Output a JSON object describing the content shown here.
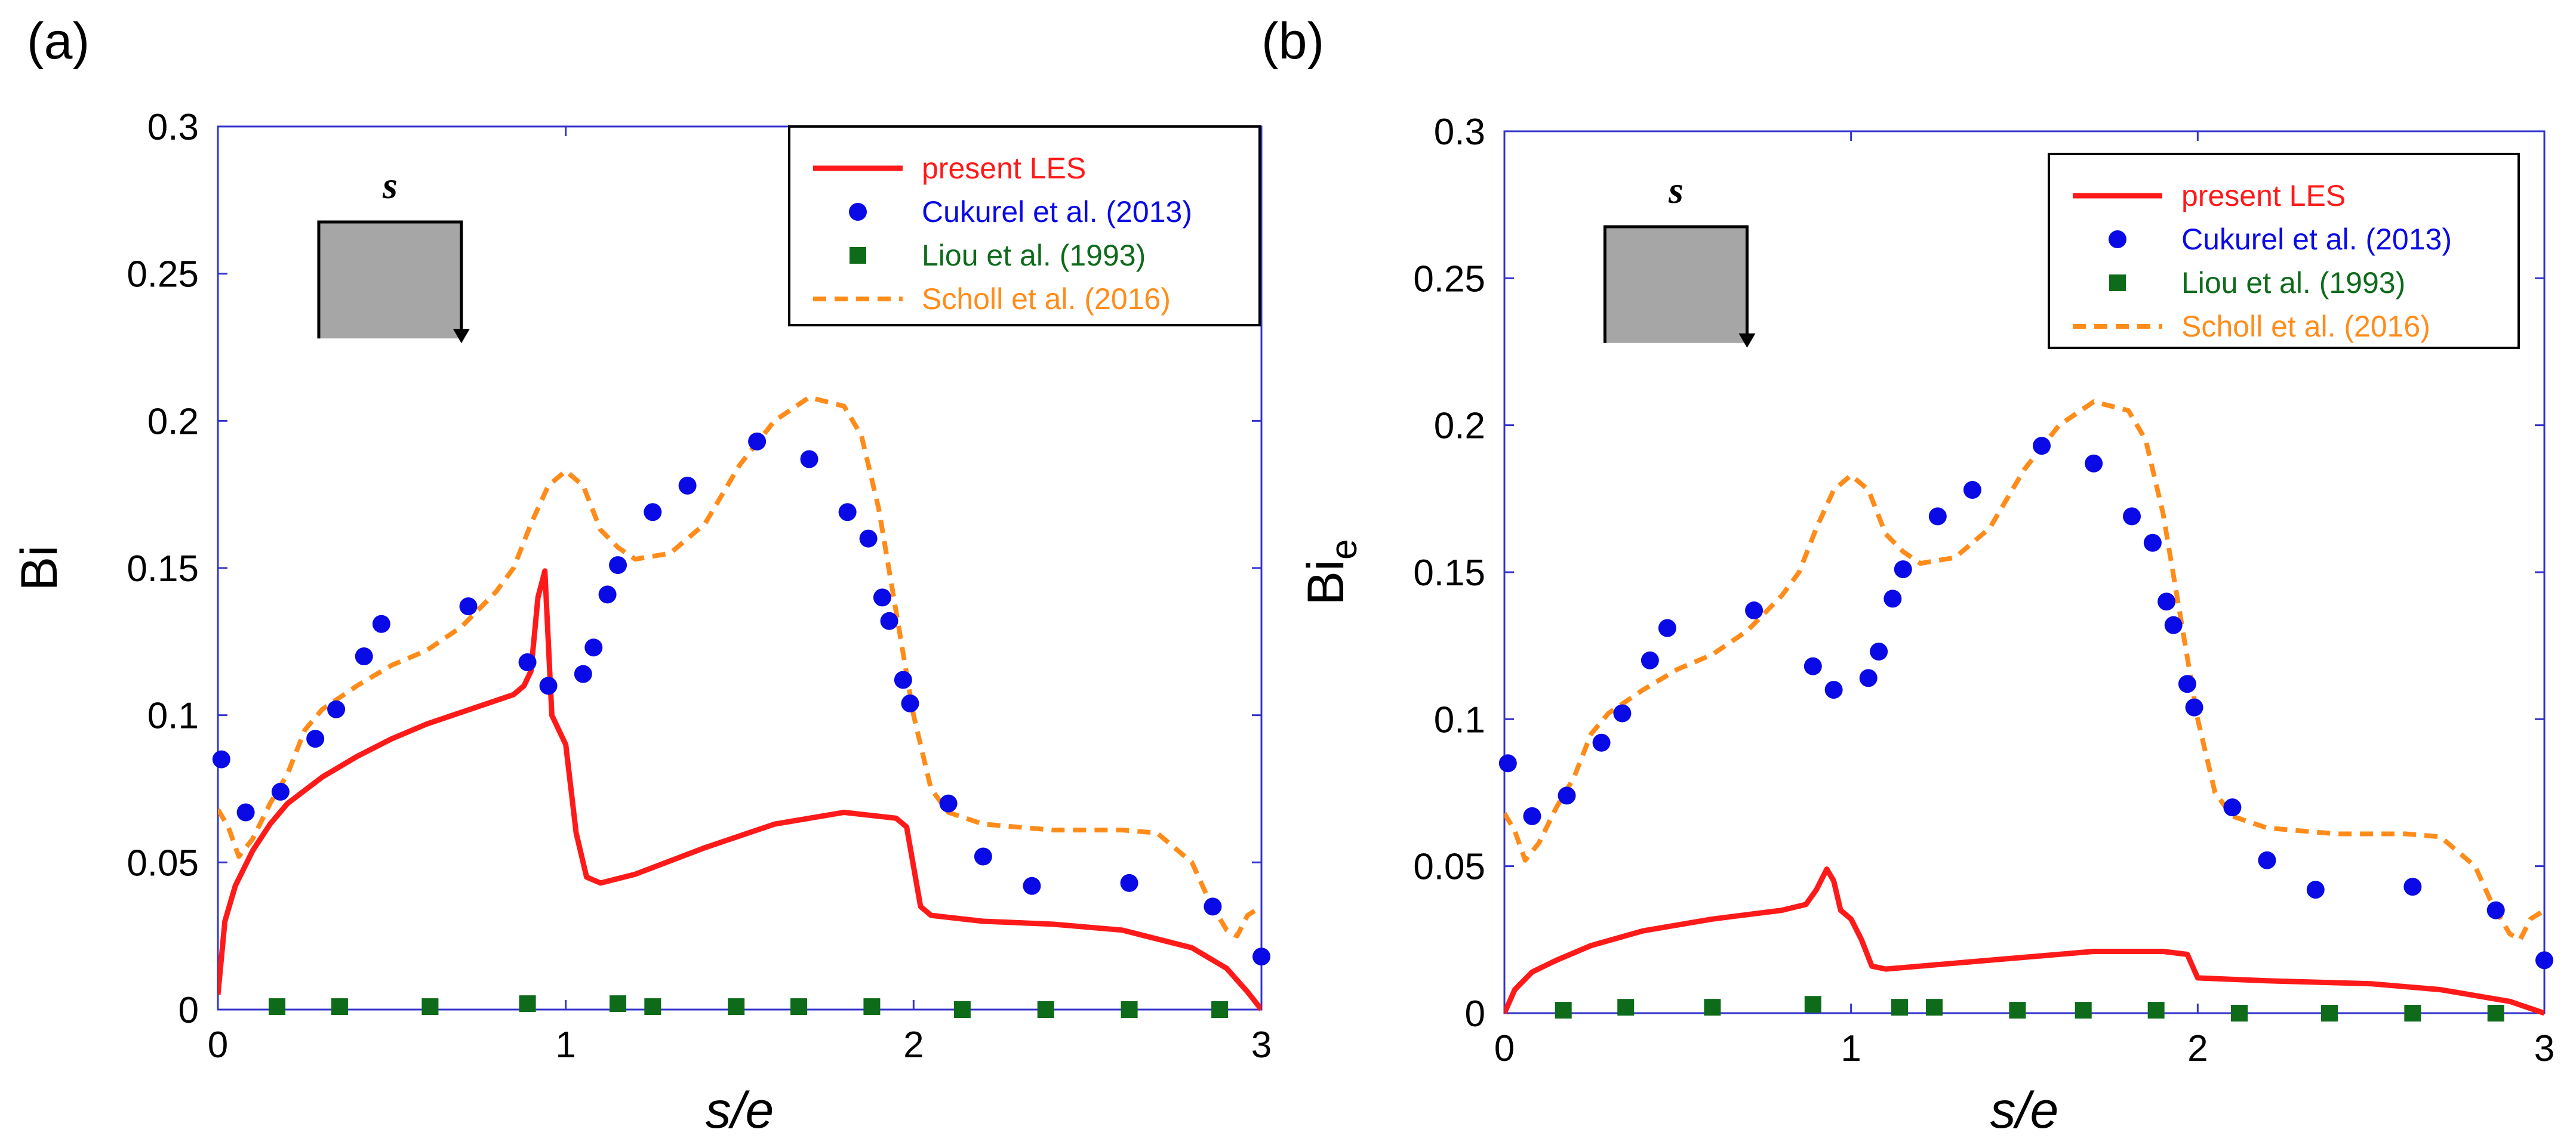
{
  "chart_data": [
    {
      "type": "line",
      "panel_label": "(a)",
      "xlabel": "s/e",
      "ylabel": "Bi",
      "ylabel_sub": "",
      "xlim": [
        0,
        3
      ],
      "ylim": [
        0,
        0.3
      ],
      "xticks": [
        "0",
        "1",
        "2",
        "3"
      ],
      "yticks": [
        "0",
        "0.05",
        "0.1",
        "0.15",
        "0.2",
        "0.25",
        "0.3"
      ],
      "inset_label": "s",
      "legend_position": "top-right",
      "series": [
        {
          "name": "present LES",
          "style": "line",
          "color": "#ff1a1a",
          "points": [
            [
              0.0,
              0.005
            ],
            [
              0.02,
              0.03
            ],
            [
              0.05,
              0.042
            ],
            [
              0.1,
              0.054
            ],
            [
              0.15,
              0.063
            ],
            [
              0.2,
              0.07
            ],
            [
              0.3,
              0.079
            ],
            [
              0.4,
              0.086
            ],
            [
              0.5,
              0.092
            ],
            [
              0.6,
              0.097
            ],
            [
              0.7,
              0.101
            ],
            [
              0.8,
              0.105
            ],
            [
              0.85,
              0.107
            ],
            [
              0.88,
              0.11
            ],
            [
              0.9,
              0.115
            ],
            [
              0.92,
              0.14
            ],
            [
              0.94,
              0.149
            ],
            [
              0.96,
              0.1
            ],
            [
              1.0,
              0.09
            ],
            [
              1.03,
              0.06
            ],
            [
              1.06,
              0.045
            ],
            [
              1.1,
              0.043
            ],
            [
              1.2,
              0.046
            ],
            [
              1.4,
              0.055
            ],
            [
              1.6,
              0.063
            ],
            [
              1.8,
              0.067
            ],
            [
              1.95,
              0.065
            ],
            [
              1.98,
              0.062
            ],
            [
              2.02,
              0.035
            ],
            [
              2.05,
              0.032
            ],
            [
              2.2,
              0.03
            ],
            [
              2.4,
              0.029
            ],
            [
              2.6,
              0.027
            ],
            [
              2.8,
              0.021
            ],
            [
              2.9,
              0.014
            ],
            [
              2.96,
              0.006
            ],
            [
              3.0,
              0.0
            ]
          ]
        },
        {
          "name": "Cukurel et al. (2013)",
          "style": "dots",
          "color": "#0a0ae6",
          "points": [
            [
              0.01,
              0.085
            ],
            [
              0.08,
              0.067
            ],
            [
              0.18,
              0.074
            ],
            [
              0.28,
              0.092
            ],
            [
              0.34,
              0.102
            ],
            [
              0.42,
              0.12
            ],
            [
              0.47,
              0.131
            ],
            [
              0.72,
              0.137
            ],
            [
              0.89,
              0.118
            ],
            [
              0.95,
              0.11
            ],
            [
              1.05,
              0.114
            ],
            [
              1.08,
              0.123
            ],
            [
              1.12,
              0.141
            ],
            [
              1.15,
              0.151
            ],
            [
              1.25,
              0.169
            ],
            [
              1.35,
              0.178
            ],
            [
              1.55,
              0.193
            ],
            [
              1.7,
              0.187
            ],
            [
              1.81,
              0.169
            ],
            [
              1.87,
              0.16
            ],
            [
              1.91,
              0.14
            ],
            [
              1.93,
              0.132
            ],
            [
              1.97,
              0.112
            ],
            [
              1.99,
              0.104
            ],
            [
              2.1,
              0.07
            ],
            [
              2.2,
              0.052
            ],
            [
              2.34,
              0.042
            ],
            [
              2.62,
              0.043
            ],
            [
              2.86,
              0.035
            ],
            [
              3.0,
              0.018
            ]
          ]
        },
        {
          "name": "Liou et al. (1993)",
          "style": "squares",
          "color": "#0d6b1a",
          "points": [
            [
              0.17,
              0.001
            ],
            [
              0.35,
              0.001
            ],
            [
              0.61,
              0.001
            ],
            [
              0.89,
              0.002
            ],
            [
              1.15,
              0.002
            ],
            [
              1.25,
              0.001
            ],
            [
              1.49,
              0.001
            ],
            [
              1.67,
              0.001
            ],
            [
              1.88,
              0.001
            ],
            [
              2.14,
              0.0
            ],
            [
              2.38,
              0.0
            ],
            [
              2.62,
              0.0
            ],
            [
              2.88,
              0.0
            ]
          ]
        },
        {
          "name": "Scholl et al. (2016)",
          "style": "dashed",
          "color": "#ff8c1a",
          "points": [
            [
              0.0,
              0.068
            ],
            [
              0.03,
              0.062
            ],
            [
              0.06,
              0.052
            ],
            [
              0.1,
              0.058
            ],
            [
              0.15,
              0.07
            ],
            [
              0.2,
              0.08
            ],
            [
              0.25,
              0.095
            ],
            [
              0.3,
              0.102
            ],
            [
              0.4,
              0.11
            ],
            [
              0.5,
              0.117
            ],
            [
              0.6,
              0.122
            ],
            [
              0.7,
              0.13
            ],
            [
              0.8,
              0.142
            ],
            [
              0.85,
              0.15
            ],
            [
              0.9,
              0.165
            ],
            [
              0.95,
              0.178
            ],
            [
              1.0,
              0.183
            ],
            [
              1.05,
              0.178
            ],
            [
              1.1,
              0.163
            ],
            [
              1.15,
              0.157
            ],
            [
              1.2,
              0.153
            ],
            [
              1.3,
              0.155
            ],
            [
              1.4,
              0.165
            ],
            [
              1.5,
              0.185
            ],
            [
              1.6,
              0.2
            ],
            [
              1.7,
              0.208
            ],
            [
              1.8,
              0.205
            ],
            [
              1.85,
              0.195
            ],
            [
              1.9,
              0.17
            ],
            [
              1.95,
              0.135
            ],
            [
              2.0,
              0.1
            ],
            [
              2.05,
              0.075
            ],
            [
              2.1,
              0.067
            ],
            [
              2.2,
              0.063
            ],
            [
              2.4,
              0.061
            ],
            [
              2.6,
              0.061
            ],
            [
              2.7,
              0.06
            ],
            [
              2.8,
              0.05
            ],
            [
              2.85,
              0.037
            ],
            [
              2.9,
              0.027
            ],
            [
              2.93,
              0.025
            ],
            [
              2.96,
              0.032
            ],
            [
              3.0,
              0.035
            ]
          ]
        }
      ]
    },
    {
      "type": "line",
      "panel_label": "(b)",
      "xlabel": "s/e",
      "ylabel": "Bi",
      "ylabel_sub": "e",
      "xlim": [
        0,
        3
      ],
      "ylim": [
        0,
        0.3
      ],
      "xticks": [
        "0",
        "1",
        "2",
        "3"
      ],
      "yticks": [
        "0",
        "0.05",
        "0.1",
        "0.15",
        "0.2",
        "0.25",
        "0.3"
      ],
      "inset_label": "s",
      "legend_position": "top-right",
      "series": [
        {
          "name": "present LES",
          "style": "line",
          "color": "#ff1a1a",
          "points": [
            [
              0.0,
              0.0
            ],
            [
              0.03,
              0.008
            ],
            [
              0.08,
              0.014
            ],
            [
              0.15,
              0.018
            ],
            [
              0.25,
              0.023
            ],
            [
              0.4,
              0.028
            ],
            [
              0.6,
              0.032
            ],
            [
              0.8,
              0.035
            ],
            [
              0.87,
              0.037
            ],
            [
              0.9,
              0.042
            ],
            [
              0.93,
              0.049
            ],
            [
              0.95,
              0.045
            ],
            [
              0.97,
              0.035
            ],
            [
              1.0,
              0.032
            ],
            [
              1.03,
              0.025
            ],
            [
              1.06,
              0.016
            ],
            [
              1.1,
              0.015
            ],
            [
              1.3,
              0.017
            ],
            [
              1.5,
              0.019
            ],
            [
              1.7,
              0.021
            ],
            [
              1.9,
              0.021
            ],
            [
              1.97,
              0.02
            ],
            [
              2.0,
              0.012
            ],
            [
              2.2,
              0.011
            ],
            [
              2.5,
              0.01
            ],
            [
              2.7,
              0.008
            ],
            [
              2.9,
              0.004
            ],
            [
              3.0,
              0.0
            ]
          ]
        },
        {
          "name": "Cukurel et al. (2013)",
          "style": "dots",
          "color": "#0a0ae6",
          "points": [
            [
              0.01,
              0.085
            ],
            [
              0.08,
              0.067
            ],
            [
              0.18,
              0.074
            ],
            [
              0.28,
              0.092
            ],
            [
              0.34,
              0.102
            ],
            [
              0.42,
              0.12
            ],
            [
              0.47,
              0.131
            ],
            [
              0.72,
              0.137
            ],
            [
              0.89,
              0.118
            ],
            [
              0.95,
              0.11
            ],
            [
              1.05,
              0.114
            ],
            [
              1.08,
              0.123
            ],
            [
              1.12,
              0.141
            ],
            [
              1.15,
              0.151
            ],
            [
              1.25,
              0.169
            ],
            [
              1.35,
              0.178
            ],
            [
              1.55,
              0.193
            ],
            [
              1.7,
              0.187
            ],
            [
              1.81,
              0.169
            ],
            [
              1.87,
              0.16
            ],
            [
              1.91,
              0.14
            ],
            [
              1.93,
              0.132
            ],
            [
              1.97,
              0.112
            ],
            [
              1.99,
              0.104
            ],
            [
              2.1,
              0.07
            ],
            [
              2.2,
              0.052
            ],
            [
              2.34,
              0.042
            ],
            [
              2.62,
              0.043
            ],
            [
              2.86,
              0.035
            ],
            [
              3.0,
              0.018
            ]
          ]
        },
        {
          "name": "Liou et al. (1993)",
          "style": "squares",
          "color": "#0d6b1a",
          "points": [
            [
              0.17,
              0.001
            ],
            [
              0.35,
              0.002
            ],
            [
              0.6,
              0.002
            ],
            [
              0.89,
              0.003
            ],
            [
              1.14,
              0.002
            ],
            [
              1.24,
              0.002
            ],
            [
              1.48,
              0.001
            ],
            [
              1.67,
              0.001
            ],
            [
              1.88,
              0.001
            ],
            [
              2.12,
              0.0
            ],
            [
              2.38,
              0.0
            ],
            [
              2.62,
              0.0
            ],
            [
              2.86,
              0.0
            ]
          ]
        },
        {
          "name": "Scholl et al. (2016)",
          "style": "dashed",
          "color": "#ff8c1a",
          "points": [
            [
              0.0,
              0.068
            ],
            [
              0.03,
              0.062
            ],
            [
              0.06,
              0.052
            ],
            [
              0.1,
              0.058
            ],
            [
              0.15,
              0.07
            ],
            [
              0.2,
              0.08
            ],
            [
              0.25,
              0.095
            ],
            [
              0.3,
              0.102
            ],
            [
              0.4,
              0.11
            ],
            [
              0.5,
              0.117
            ],
            [
              0.6,
              0.122
            ],
            [
              0.7,
              0.13
            ],
            [
              0.8,
              0.142
            ],
            [
              0.85,
              0.15
            ],
            [
              0.9,
              0.165
            ],
            [
              0.95,
              0.178
            ],
            [
              1.0,
              0.183
            ],
            [
              1.05,
              0.178
            ],
            [
              1.1,
              0.163
            ],
            [
              1.15,
              0.157
            ],
            [
              1.2,
              0.153
            ],
            [
              1.3,
              0.155
            ],
            [
              1.4,
              0.165
            ],
            [
              1.5,
              0.185
            ],
            [
              1.6,
              0.2
            ],
            [
              1.7,
              0.208
            ],
            [
              1.8,
              0.205
            ],
            [
              1.85,
              0.195
            ],
            [
              1.9,
              0.17
            ],
            [
              1.95,
              0.135
            ],
            [
              2.0,
              0.1
            ],
            [
              2.05,
              0.075
            ],
            [
              2.1,
              0.067
            ],
            [
              2.2,
              0.063
            ],
            [
              2.4,
              0.061
            ],
            [
              2.6,
              0.061
            ],
            [
              2.7,
              0.06
            ],
            [
              2.8,
              0.05
            ],
            [
              2.85,
              0.037
            ],
            [
              2.9,
              0.027
            ],
            [
              2.93,
              0.025
            ],
            [
              2.96,
              0.032
            ],
            [
              3.0,
              0.035
            ]
          ]
        }
      ]
    }
  ]
}
